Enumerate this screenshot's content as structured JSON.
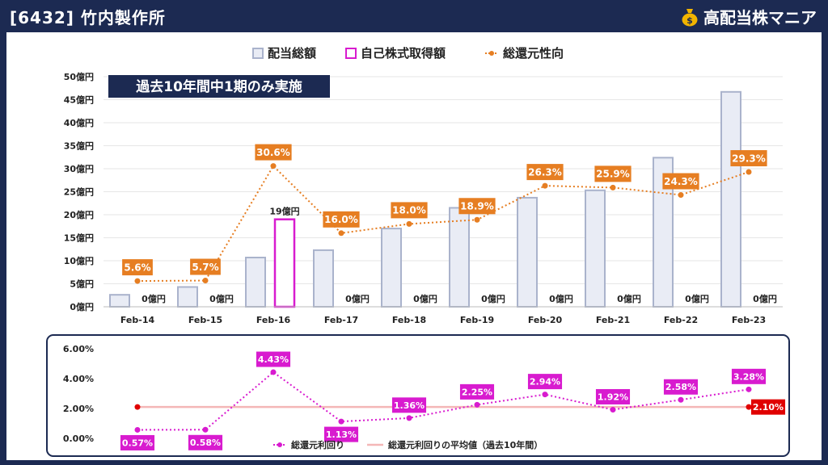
{
  "header": {
    "title": "[6432] 竹内製作所",
    "brand": "高配当株マニア",
    "brand_icon": "money-bag-icon"
  },
  "colors": {
    "header_bg": "#1c2a52",
    "bar_fill": "#e9ecf5",
    "bar_stroke": "#aab3cc",
    "buyback_stroke": "#d81bcf",
    "payout_line": "#e67e22",
    "yield_line": "#d81bcf",
    "avg_line": "#f4b7b7",
    "avg_label": "#e00000",
    "note_bg": "#1c2a52"
  },
  "chart_data": [
    {
      "type": "bar",
      "legend": [
        "配当総額",
        "自己株式取得額",
        "総還元性向"
      ],
      "note": "過去10年間中1期のみ実施",
      "categories": [
        "Feb-14",
        "Feb-15",
        "Feb-16",
        "Feb-17",
        "Feb-18",
        "Feb-19",
        "Feb-20",
        "Feb-21",
        "Feb-22",
        "Feb-23"
      ],
      "y_ticks": [
        "0億円",
        "5億円",
        "10億円",
        "15億円",
        "20億円",
        "25億円",
        "30億円",
        "35億円",
        "40億円",
        "45億円",
        "50億円"
      ],
      "ylim": [
        0,
        50
      ],
      "series": [
        {
          "name": "配当総額",
          "values": [
            2.6,
            4.3,
            10.7,
            12.3,
            17.0,
            21.5,
            23.7,
            25.3,
            32.4,
            46.7
          ]
        },
        {
          "name": "自己株式取得額",
          "values": [
            0,
            0,
            19,
            0,
            0,
            0,
            0,
            0,
            0,
            0
          ],
          "labels": [
            "0億円",
            "0億円",
            "19億円",
            "0億円",
            "0億円",
            "0億円",
            "0億円",
            "0億円",
            "0億円",
            "0億円"
          ]
        },
        {
          "name": "総還元性向",
          "values": [
            5.6,
            5.7,
            30.6,
            16.0,
            18.0,
            18.9,
            26.3,
            25.9,
            24.3,
            29.3
          ],
          "labels": [
            "5.6%",
            "5.7%",
            "30.6%",
            "16.0%",
            "18.0%",
            "18.9%",
            "26.3%",
            "25.9%",
            "24.3%",
            "29.3%"
          ]
        }
      ]
    },
    {
      "type": "line",
      "legend": [
        "総還元利回り",
        "総還元利回りの平均値（過去10年間）"
      ],
      "y_ticks": [
        "0.00%",
        "2.00%",
        "4.00%",
        "6.00%"
      ],
      "ylim": [
        0,
        6
      ],
      "series": [
        {
          "name": "総還元利回り",
          "values": [
            0.57,
            0.58,
            4.43,
            1.13,
            1.36,
            2.25,
            2.94,
            1.92,
            2.58,
            3.28
          ],
          "labels": [
            "0.57%",
            "0.58%",
            "4.43%",
            "1.13%",
            "1.36%",
            "2.25%",
            "2.94%",
            "1.92%",
            "2.58%",
            "3.28%"
          ]
        },
        {
          "name": "総還元利回りの平均値（過去10年間）",
          "value": 2.1,
          "label": "2.10%"
        }
      ]
    }
  ]
}
